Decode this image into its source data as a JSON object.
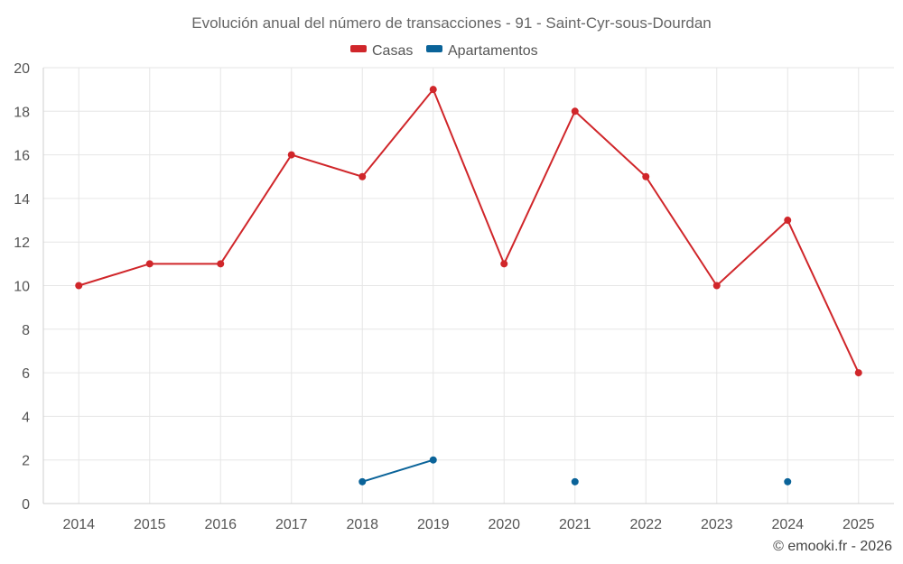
{
  "chart_data": {
    "type": "line",
    "title": "Evolución anual del número de transacciones - 91 - Saint-Cyr-sous-Dourdan",
    "categories": [
      "2014",
      "2015",
      "2016",
      "2017",
      "2018",
      "2019",
      "2020",
      "2021",
      "2022",
      "2023",
      "2024",
      "2025"
    ],
    "ylim": [
      0,
      20
    ],
    "yticks": [
      0,
      2,
      4,
      6,
      8,
      10,
      12,
      14,
      16,
      18,
      20
    ],
    "grid": true,
    "legend_position": "top-center",
    "series": [
      {
        "name": "Casas",
        "color": "#d0262a",
        "values": [
          10,
          11,
          11,
          16,
          15,
          19,
          11,
          18,
          15,
          10,
          13,
          6
        ]
      },
      {
        "name": "Apartamentos",
        "color": "#0a6399",
        "values": [
          null,
          null,
          null,
          null,
          1,
          2,
          null,
          1,
          null,
          null,
          1,
          null
        ]
      }
    ],
    "credit": "© emooki.fr - 2026"
  }
}
